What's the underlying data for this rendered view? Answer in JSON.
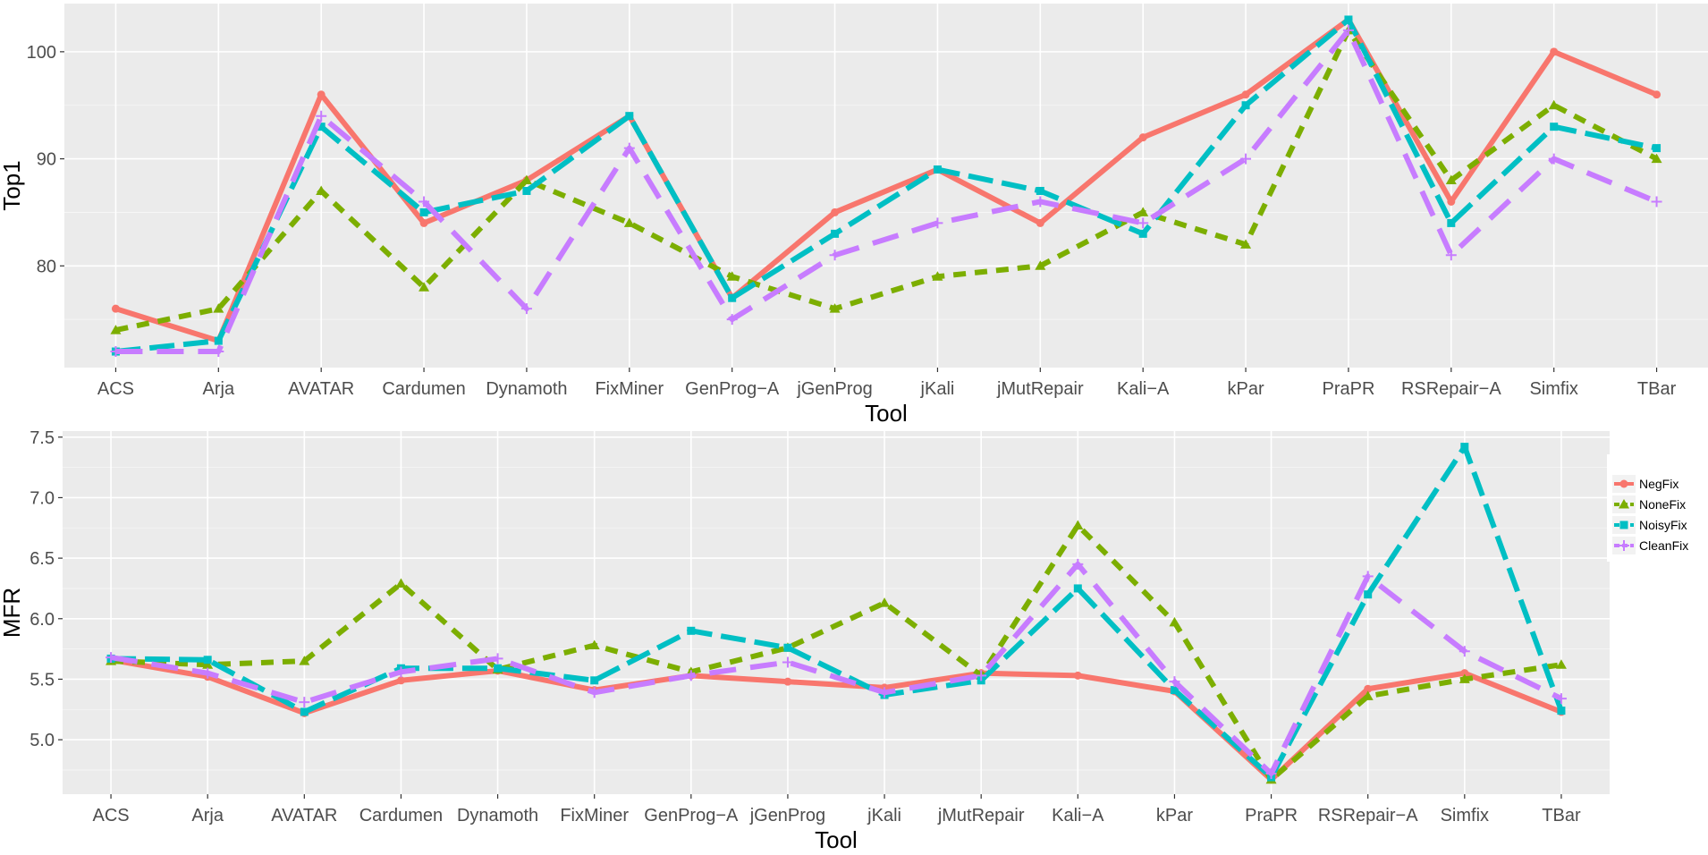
{
  "chart_data": [
    {
      "type": "line",
      "xlabel": "Tool",
      "ylabel": "Top1",
      "categories": [
        "ACS",
        "Arja",
        "AVATAR",
        "Cardumen",
        "Dynamoth",
        "FixMiner",
        "GenProg−A",
        "jGenProg",
        "jKali",
        "jMutRepair",
        "Kali−A",
        "kPar",
        "PraPR",
        "RSRepair−A",
        "Simfix",
        "TBar"
      ],
      "ylim": [
        70.5,
        104.5
      ],
      "yticks": [
        80,
        90,
        100
      ],
      "grid": true,
      "legend": "none",
      "series": [
        {
          "name": "NegFix",
          "color": "#F8766D",
          "values": [
            76,
            73,
            96,
            84,
            88,
            94,
            77,
            85,
            89,
            84,
            92,
            96,
            103,
            86,
            100,
            96
          ]
        },
        {
          "name": "NoneFix",
          "color": "#7CAE00",
          "values": [
            74,
            76,
            87,
            78,
            88,
            84,
            79,
            76,
            79,
            80,
            85,
            82,
            102,
            88,
            95,
            90
          ]
        },
        {
          "name": "NoisyFix",
          "color": "#00BFC4",
          "values": [
            72,
            73,
            93,
            85,
            87,
            94,
            77,
            83,
            89,
            87,
            83,
            95,
            103,
            84,
            93,
            91
          ]
        },
        {
          "name": "CleanFix",
          "color": "#C77CFF",
          "values": [
            72,
            72,
            94,
            86,
            76,
            91,
            75,
            81,
            84,
            86,
            84,
            90,
            102,
            81,
            90,
            86
          ]
        }
      ]
    },
    {
      "type": "line",
      "xlabel": "Tool",
      "ylabel": "MFR",
      "categories": [
        "ACS",
        "Arja",
        "AVATAR",
        "Cardumen",
        "Dynamoth",
        "FixMiner",
        "GenProg−A",
        "jGenProg",
        "jKali",
        "jMutRepair",
        "Kali−A",
        "kPar",
        "PraPR",
        "RSRepair−A",
        "Simfix",
        "TBar"
      ],
      "ylim": [
        4.55,
        7.55
      ],
      "yticks": [
        5.0,
        5.5,
        6.0,
        6.5,
        7.0,
        7.5
      ],
      "grid": true,
      "legend": "right",
      "series": [
        {
          "name": "NegFix",
          "color": "#F8766D",
          "values": [
            5.66,
            5.52,
            5.22,
            5.49,
            5.57,
            5.41,
            5.53,
            5.48,
            5.43,
            5.55,
            5.53,
            5.4,
            4.67,
            5.42,
            5.55,
            5.23
          ]
        },
        {
          "name": "NoneFix",
          "color": "#7CAE00",
          "values": [
            5.65,
            5.62,
            5.65,
            6.29,
            5.58,
            5.78,
            5.56,
            5.76,
            6.13,
            5.53,
            6.77,
            5.97,
            4.67,
            5.36,
            5.5,
            5.62
          ]
        },
        {
          "name": "NoisyFix",
          "color": "#00BFC4",
          "values": [
            5.67,
            5.66,
            5.23,
            5.59,
            5.59,
            5.49,
            5.9,
            5.76,
            5.37,
            5.49,
            6.25,
            5.41,
            4.69,
            6.2,
            7.42,
            5.24
          ]
        },
        {
          "name": "CleanFix",
          "color": "#C77CFF",
          "values": [
            5.68,
            5.55,
            5.31,
            5.56,
            5.67,
            5.39,
            5.53,
            5.64,
            5.39,
            5.53,
            6.45,
            5.48,
            4.72,
            6.35,
            5.73,
            5.34
          ]
        }
      ]
    }
  ]
}
